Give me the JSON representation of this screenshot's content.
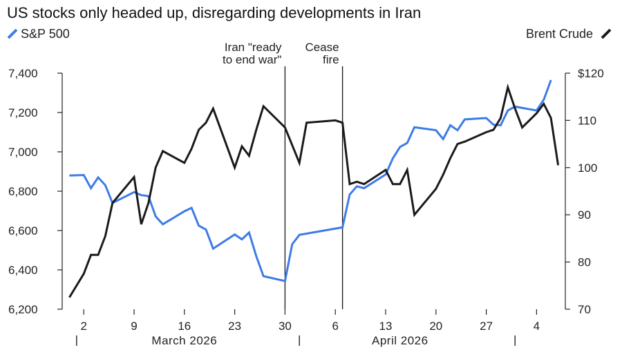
{
  "title": "US stocks only headed up, disregarding developments in Iran",
  "chart_data": {
    "type": "line",
    "title": "US stocks only headed up, disregarding developments in Iran",
    "colors": {
      "sp500": "#3d7be6",
      "brent": "#1a1a1a",
      "axis": "#222222"
    },
    "legend": {
      "sp500": "S&P 500",
      "brent": "Brent Crude"
    },
    "left_axis": {
      "min": 6200,
      "max": 7400,
      "ticks": [
        6200,
        6400,
        6600,
        6800,
        7000,
        7200,
        7400
      ],
      "tick_labels": [
        "6,200",
        "6,400",
        "6,600",
        "6,800",
        "7,000",
        "7,200",
        "7,400"
      ]
    },
    "right_axis": {
      "min": 70,
      "max": 120,
      "ticks": [
        70,
        80,
        90,
        100,
        110,
        120
      ],
      "tick_labels": [
        "70",
        "80",
        "90",
        "100",
        "110",
        "$120"
      ]
    },
    "x_axis": {
      "day_ticks": [
        {
          "date": "2026-03-02",
          "label": "2"
        },
        {
          "date": "2026-03-09",
          "label": "9"
        },
        {
          "date": "2026-03-16",
          "label": "16"
        },
        {
          "date": "2026-03-23",
          "label": "23"
        },
        {
          "date": "2026-03-30",
          "label": "30"
        },
        {
          "date": "2026-04-06",
          "label": "6"
        },
        {
          "date": "2026-04-13",
          "label": "13"
        },
        {
          "date": "2026-04-20",
          "label": "20"
        },
        {
          "date": "2026-04-27",
          "label": "27"
        },
        {
          "date": "2026-05-04",
          "label": "4"
        }
      ],
      "month_labels": [
        {
          "label": "March 2026",
          "date": "2026-03-16"
        },
        {
          "label": "April 2026",
          "date": "2026-04-15"
        }
      ],
      "month_separators": [
        "2026-03-01",
        "2026-04-01",
        "2026-05-01"
      ]
    },
    "annotations": [
      {
        "date": "2026-03-30",
        "lines": [
          "Iran \"ready",
          "to end war\""
        ]
      },
      {
        "date": "2026-04-07",
        "lines": [
          "Cease",
          "fire"
        ]
      }
    ],
    "series": [
      {
        "name": "S&P 500",
        "axis": "left",
        "points": [
          [
            "2026-02-28",
            6880
          ],
          [
            "2026-03-02",
            6882
          ],
          [
            "2026-03-03",
            6815
          ],
          [
            "2026-03-04",
            6870
          ],
          [
            "2026-03-05",
            6830
          ],
          [
            "2026-03-06",
            6740
          ],
          [
            "2026-03-09",
            6795
          ],
          [
            "2026-03-10",
            6780
          ],
          [
            "2026-03-11",
            6775
          ],
          [
            "2026-03-12",
            6672
          ],
          [
            "2026-03-13",
            6632
          ],
          [
            "2026-03-16",
            6698
          ],
          [
            "2026-03-17",
            6715
          ],
          [
            "2026-03-18",
            6625
          ],
          [
            "2026-03-19",
            6605
          ],
          [
            "2026-03-20",
            6508
          ],
          [
            "2026-03-23",
            6580
          ],
          [
            "2026-03-24",
            6555
          ],
          [
            "2026-03-25",
            6590
          ],
          [
            "2026-03-26",
            6470
          ],
          [
            "2026-03-27",
            6368
          ],
          [
            "2026-03-30",
            6343
          ],
          [
            "2026-03-31",
            6530
          ],
          [
            "2026-04-01",
            6578
          ],
          [
            "2026-04-07",
            6616
          ],
          [
            "2026-04-08",
            6783
          ],
          [
            "2026-04-09",
            6825
          ],
          [
            "2026-04-10",
            6815
          ],
          [
            "2026-04-13",
            6885
          ],
          [
            "2026-04-14",
            6967
          ],
          [
            "2026-04-15",
            7025
          ],
          [
            "2026-04-16",
            7045
          ],
          [
            "2026-04-17",
            7125
          ],
          [
            "2026-04-20",
            7110
          ],
          [
            "2026-04-21",
            7065
          ],
          [
            "2026-04-22",
            7135
          ],
          [
            "2026-04-23",
            7110
          ],
          [
            "2026-04-24",
            7165
          ],
          [
            "2026-04-27",
            7172
          ],
          [
            "2026-04-28",
            7138
          ],
          [
            "2026-04-29",
            7135
          ],
          [
            "2026-04-30",
            7210
          ],
          [
            "2026-05-01",
            7230
          ],
          [
            "2026-05-04",
            7210
          ],
          [
            "2026-05-05",
            7265
          ],
          [
            "2026-05-06",
            7365
          ]
        ]
      },
      {
        "name": "Brent Crude",
        "axis": "right",
        "points": [
          [
            "2026-02-28",
            72.5
          ],
          [
            "2026-03-02",
            77.5
          ],
          [
            "2026-03-03",
            81.5
          ],
          [
            "2026-03-04",
            81.5
          ],
          [
            "2026-03-05",
            85.5
          ],
          [
            "2026-03-06",
            92.5
          ],
          [
            "2026-03-09",
            98.0
          ],
          [
            "2026-03-10",
            88.0
          ],
          [
            "2026-03-11",
            92.5
          ],
          [
            "2026-03-12",
            100.0
          ],
          [
            "2026-03-13",
            103.5
          ],
          [
            "2026-03-16",
            101.0
          ],
          [
            "2026-03-17",
            104.0
          ],
          [
            "2026-03-18",
            108.0
          ],
          [
            "2026-03-19",
            109.5
          ],
          [
            "2026-03-20",
            112.5
          ],
          [
            "2026-03-23",
            100.0
          ],
          [
            "2026-03-24",
            104.5
          ],
          [
            "2026-03-25",
            102.5
          ],
          [
            "2026-03-26",
            108.0
          ],
          [
            "2026-03-27",
            113.0
          ],
          [
            "2026-03-30",
            108.5
          ],
          [
            "2026-04-01",
            101.0
          ],
          [
            "2026-04-02",
            109.5
          ],
          [
            "2026-04-06",
            110.0
          ],
          [
            "2026-04-07",
            109.5
          ],
          [
            "2026-04-08",
            96.5
          ],
          [
            "2026-04-09",
            97.0
          ],
          [
            "2026-04-10",
            96.5
          ],
          [
            "2026-04-13",
            99.5
          ],
          [
            "2026-04-14",
            96.5
          ],
          [
            "2026-04-15",
            96.5
          ],
          [
            "2026-04-16",
            99.5
          ],
          [
            "2026-04-17",
            90.0
          ],
          [
            "2026-04-20",
            95.5
          ],
          [
            "2026-04-21",
            98.5
          ],
          [
            "2026-04-22",
            102.0
          ],
          [
            "2026-04-23",
            105.0
          ],
          [
            "2026-04-24",
            105.5
          ],
          [
            "2026-04-27",
            107.5
          ],
          [
            "2026-04-28",
            108.0
          ],
          [
            "2026-04-29",
            110.5
          ],
          [
            "2026-04-30",
            117.0
          ],
          [
            "2026-05-01",
            112.5
          ],
          [
            "2026-05-02",
            108.5
          ],
          [
            "2026-05-04",
            111.5
          ],
          [
            "2026-05-05",
            113.5
          ],
          [
            "2026-05-06",
            110.5
          ],
          [
            "2026-05-07",
            100.5
          ]
        ]
      }
    ]
  }
}
